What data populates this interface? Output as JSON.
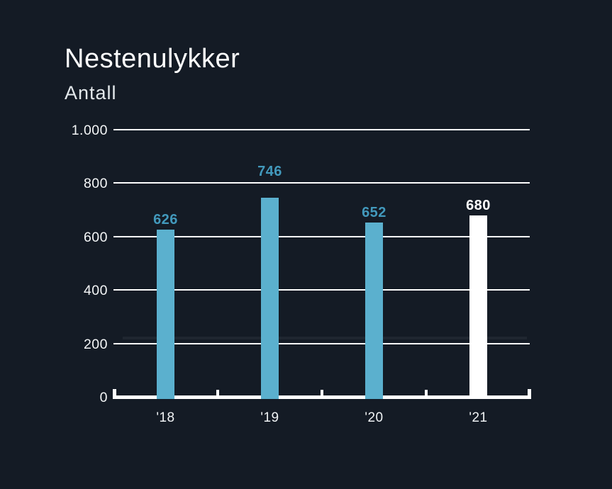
{
  "chart": {
    "title": "Nestenulykker",
    "subtitle": "Antall"
  },
  "chart_data": {
    "type": "bar",
    "title": "Nestenulykker",
    "subtitle": "Antall",
    "ylabel": "Antall",
    "xlabel": "",
    "categories": [
      "'18",
      "'19",
      "'20",
      "'21"
    ],
    "values": [
      626,
      746,
      652,
      680
    ],
    "value_labels": [
      "626",
      "746",
      "652",
      "680"
    ],
    "bar_colors": [
      "#5bb0ce",
      "#5bb0ce",
      "#5bb0ce",
      "#ffffff"
    ],
    "value_label_colors": [
      "#4299bc",
      "#4299bc",
      "#4299bc",
      "#ffffff"
    ],
    "ylim": [
      0,
      1000
    ],
    "ytick_values": [
      0,
      200,
      400,
      600,
      800,
      1000
    ],
    "ytick_labels": [
      "0",
      "200",
      "400",
      "600",
      "800",
      "1.000"
    ],
    "grid": true,
    "legend": false,
    "colors": {
      "background": "#141b25",
      "gridline": "#fdfdfd",
      "axis": "#ffffff",
      "text": "#f0f3f5"
    }
  }
}
